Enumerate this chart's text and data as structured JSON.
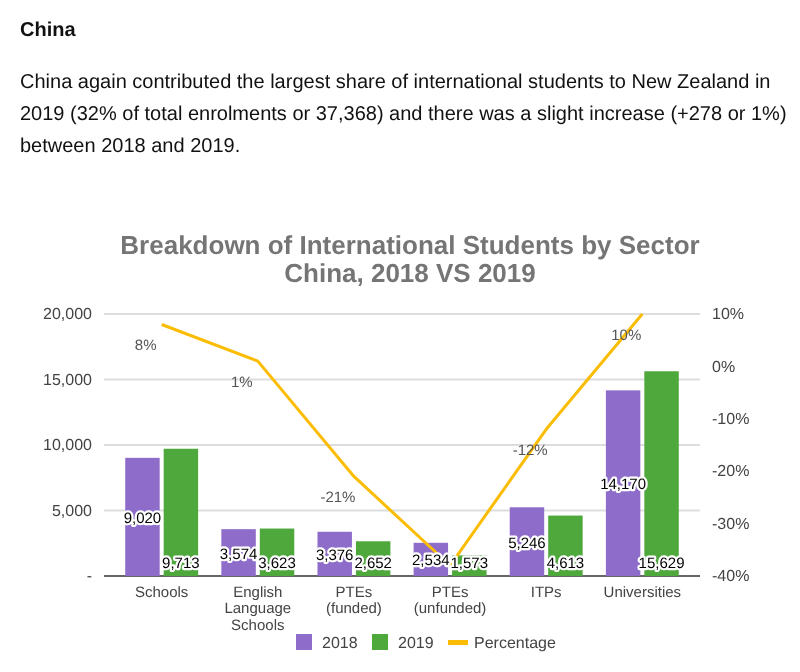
{
  "chart_data": {
    "type": "bar",
    "title": "Breakdown of International Students by Sector\nChina, 2018 VS 2019",
    "annotations": [
      "China",
      "China again contributed the largest share of international students to New Zealand in 2019 (32% of total enrolments or 37,368) and there was a slight increase (+278 or 1%) between 2018 and 2019."
    ],
    "categories": [
      "Schools",
      "English Language Schools",
      "PTEs (funded)",
      "PTEs (unfunded)",
      "ITPs",
      "Universities"
    ],
    "series": [
      {
        "name": "2018",
        "color": "#8e6cc9",
        "values": [
          9020,
          3574,
          3376,
          2534,
          5246,
          14170
        ],
        "value_labels": [
          "9,020",
          "3,574",
          "3,376",
          "2,534",
          "5,246",
          "14,170"
        ]
      },
      {
        "name": "2019",
        "color": "#4ea83c",
        "values": [
          9713,
          3623,
          2652,
          1573,
          4613,
          15629
        ],
        "value_labels": [
          "9,713",
          "3,623",
          "2,652",
          "1,573",
          "4,613",
          "15,629"
        ]
      },
      {
        "name": "Percentage",
        "type": "line",
        "axis": "y2",
        "color": "#fbbc04",
        "values": [
          8,
          1,
          -21,
          -38,
          -12,
          10
        ],
        "value_labels": [
          "8%",
          "1%",
          "-21%",
          null,
          "-12%",
          "10%"
        ]
      }
    ],
    "ylim": [
      0,
      20000
    ],
    "yticks": [
      {
        "value": 0,
        "label": "-"
      },
      {
        "value": 5000,
        "label": "5,000"
      },
      {
        "value": 10000,
        "label": "10,000"
      },
      {
        "value": 15000,
        "label": "15,000"
      },
      {
        "value": 20000,
        "label": "20,000"
      }
    ],
    "y2lim": [
      -40,
      10
    ],
    "y2ticks": [
      {
        "value": -40,
        "label": "-40%"
      },
      {
        "value": -30,
        "label": "-30%"
      },
      {
        "value": -20,
        "label": "-20%"
      },
      {
        "value": -10,
        "label": "-10%"
      },
      {
        "value": 0,
        "label": "0%"
      },
      {
        "value": 10,
        "label": "10%"
      }
    ],
    "grid": "y",
    "legend": "bottom"
  }
}
